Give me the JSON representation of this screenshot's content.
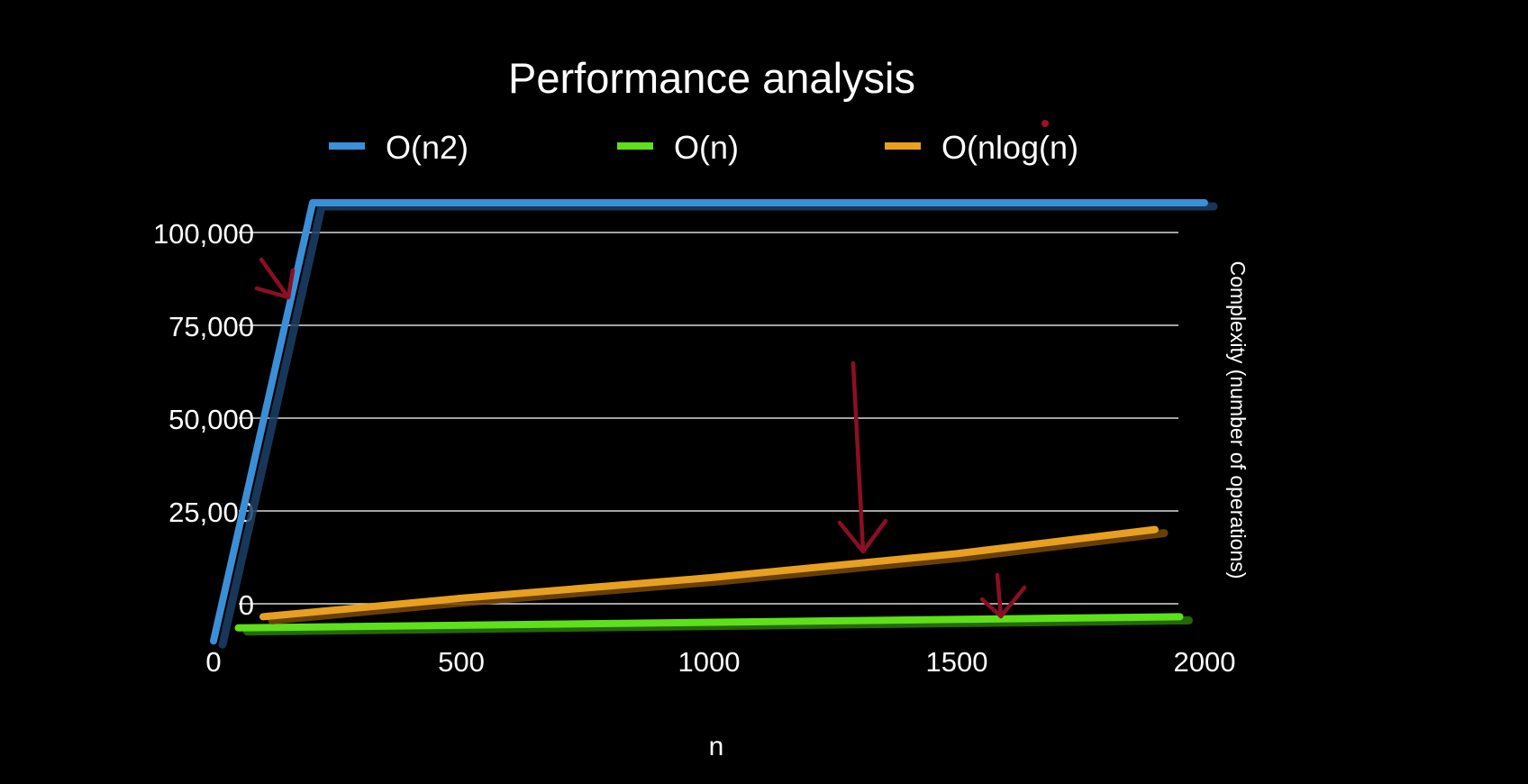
{
  "chart_data": {
    "type": "line",
    "title": "Performance analysis",
    "xlabel": "n",
    "ylabel": "Complexity (number of operations)",
    "x_ticks": [
      "0",
      "500",
      "1000",
      "1500",
      "2000"
    ],
    "y_ticks": [
      "0",
      "25,000",
      "50,000",
      "75,000",
      "100,000"
    ],
    "xlim": [
      0,
      2000
    ],
    "ylim": [
      0,
      100000
    ],
    "grid": true,
    "legend_position": "top",
    "series": [
      {
        "name": "O(n2)",
        "color": "#3a8fd6",
        "points": [
          [
            0,
            -10000
          ],
          [
            200,
            108000
          ],
          [
            2000,
            108000
          ]
        ]
      },
      {
        "name": "O(n)",
        "color": "#5ee01a",
        "points": [
          [
            50,
            -6500
          ],
          [
            1950,
            -3500
          ]
        ]
      },
      {
        "name": "O(nlog(n)",
        "color": "#e8a020",
        "points": [
          [
            100,
            -3500
          ],
          [
            500,
            1500
          ],
          [
            1000,
            7000
          ],
          [
            1500,
            13500
          ],
          [
            1900,
            20000
          ]
        ]
      }
    ],
    "annotations": [
      {
        "type": "arrow",
        "color": "#8b0f24",
        "target_series": "O(n2)"
      },
      {
        "type": "arrow",
        "color": "#8b0f24",
        "target_series": "O(nlog(n)"
      },
      {
        "type": "arrow",
        "color": "#8b0f24",
        "target_series": "O(n)"
      }
    ]
  }
}
